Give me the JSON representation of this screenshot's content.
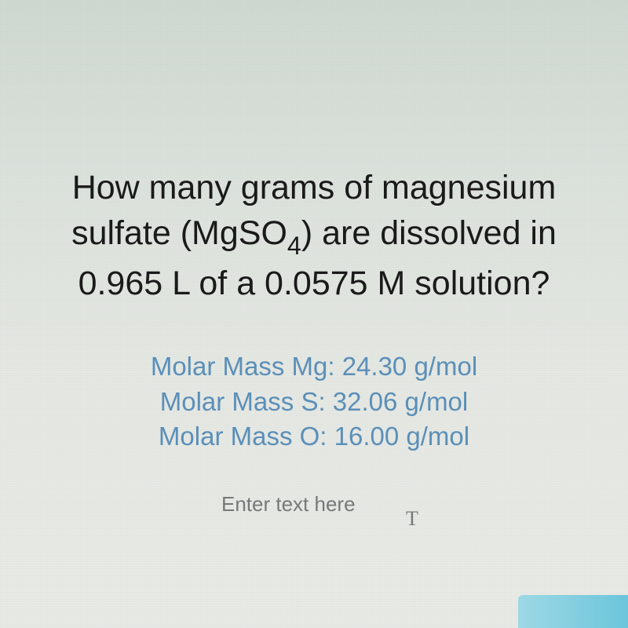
{
  "question": {
    "line1": "How many grams of magnesium",
    "line2_pre": "sulfate (MgSO",
    "line2_sub": "4",
    "line2_post": ") are dissolved in",
    "line3": "0.965 L of a 0.0575 M solution?",
    "text_color": "#1a1a1a",
    "font_size": 43
  },
  "molar_masses": {
    "lines": [
      "Molar Mass Mg:  24.30 g/mol",
      "Molar Mass S:  32.06 g/mol",
      "Molar Mass O:  16.00 g/mol"
    ],
    "text_color": "#5b8fb8",
    "font_size": 33
  },
  "input": {
    "placeholder": "Enter text here",
    "placeholder_color": "#787878",
    "cursor_glyph": "T"
  },
  "styling": {
    "background_gradient_top": "#d0d8d2",
    "background_gradient_bottom": "#e8eae6",
    "accent_bar_color_start": "#9dd8e5",
    "accent_bar_color_end": "#6cc5db"
  }
}
